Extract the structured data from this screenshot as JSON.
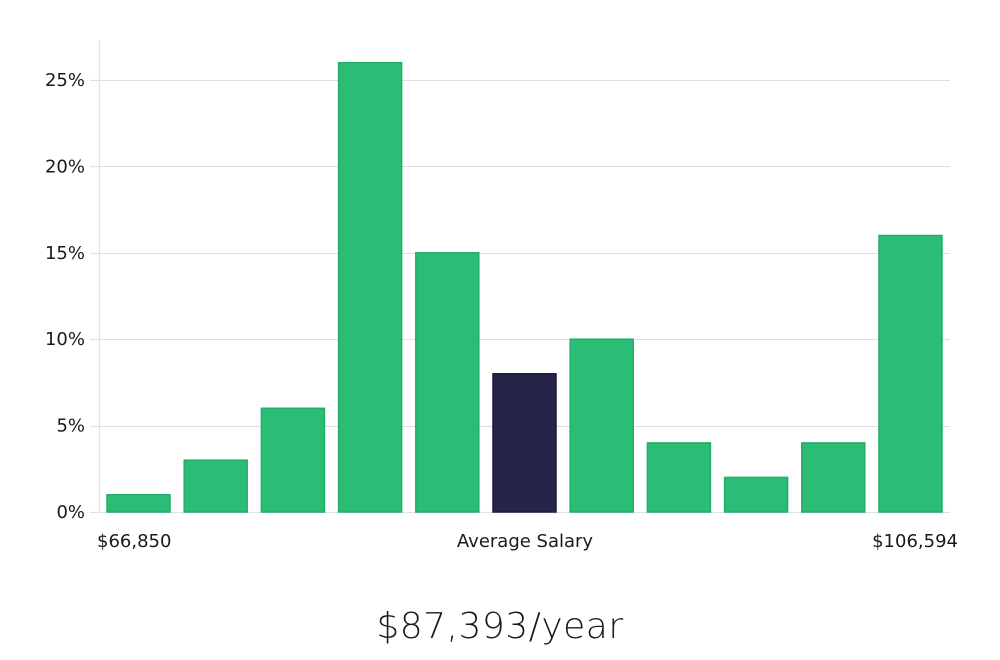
{
  "chart_data": {
    "type": "bar",
    "title": "",
    "xlabel": "Average Salary",
    "ylabel": "",
    "x_range_labels": {
      "min": "$66,850",
      "max": "$106,594"
    },
    "values": [
      1,
      3,
      6,
      26,
      15,
      8,
      10,
      4,
      2,
      4,
      16
    ],
    "highlight_index": 5,
    "ylim": [
      0,
      27
    ],
    "yticks": [
      0,
      5,
      10,
      15,
      20,
      25
    ],
    "ytick_suffix": "%",
    "grid": true,
    "colors": {
      "bar": "#2bbd76",
      "highlight": "#27244a",
      "grid": "#dedede"
    }
  },
  "summary": {
    "salary_text": "$87,393/year"
  }
}
